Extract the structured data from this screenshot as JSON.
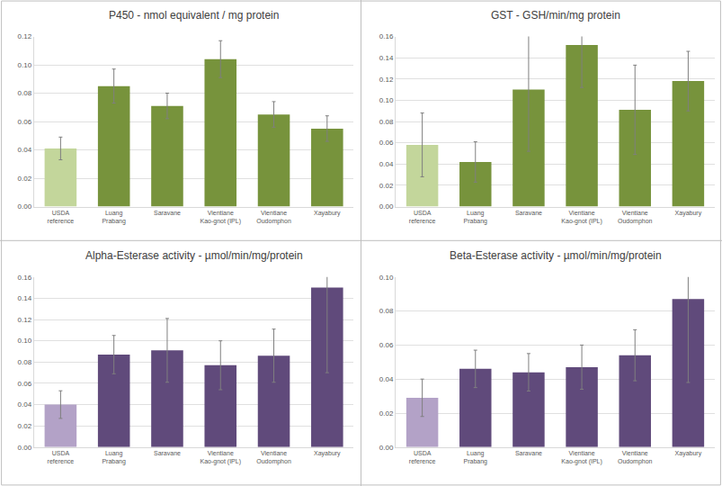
{
  "chart_data": [
    {
      "type": "bar",
      "title": "P450 - nmol equivalent / mg protein",
      "categories": [
        "USDA reference",
        "Luang Prabang",
        "Saravane",
        "Vientiane Kao-gnot (IPL)",
        "Vientiane Oudomphon",
        "Xayabury"
      ],
      "values": [
        0.041,
        0.085,
        0.071,
        0.104,
        0.065,
        0.055
      ],
      "errors": [
        0.008,
        0.012,
        0.009,
        0.013,
        0.009,
        0.009
      ],
      "colors": [
        "#c3d69b",
        "#77933c",
        "#77933c",
        "#77933c",
        "#77933c",
        "#77933c"
      ],
      "ylim": [
        0,
        0.12
      ],
      "yticks": [
        {
          "value": 0,
          "label": "0.00"
        },
        {
          "value": 0.02,
          "label": "0.02"
        },
        {
          "value": 0.04,
          "label": "0.04"
        },
        {
          "value": 0.06,
          "label": "0.06"
        },
        {
          "value": 0.08,
          "label": "0.08"
        },
        {
          "value": 0.1,
          "label": "0.10"
        },
        {
          "value": 0.12,
          "label": "0.12"
        }
      ],
      "grid": true
    },
    {
      "type": "bar",
      "title": "GST - GSH/min/mg protein",
      "categories": [
        "USDA reference",
        "Luang Prabang",
        "Saravane",
        "Vientiane Kao-gnot (IPL)",
        "Vientiane Oudomphon",
        "Xayabury"
      ],
      "values": [
        0.058,
        0.042,
        0.11,
        0.152,
        0.091,
        0.118
      ],
      "errors": [
        0.03,
        0.019,
        0.058,
        0.04,
        0.042,
        0.028
      ],
      "colors": [
        "#c3d69b",
        "#77933c",
        "#77933c",
        "#77933c",
        "#77933c",
        "#77933c"
      ],
      "ylim": [
        0,
        0.16
      ],
      "yticks": [
        {
          "value": 0,
          "label": "0.00"
        },
        {
          "value": 0.02,
          "label": "0.02"
        },
        {
          "value": 0.04,
          "label": "0.04"
        },
        {
          "value": 0.06,
          "label": "0.06"
        },
        {
          "value": 0.08,
          "label": "0.08"
        },
        {
          "value": 0.1,
          "label": "0.10"
        },
        {
          "value": 0.12,
          "label": "0.12"
        },
        {
          "value": 0.14,
          "label": "0.14"
        },
        {
          "value": 0.16,
          "label": "0.16"
        }
      ],
      "grid": true
    },
    {
      "type": "bar",
      "title": "Alpha-Esterase activity - µmol/min/mg/protein",
      "categories": [
        "USDA reference",
        "Luang Prabang",
        "Saravane",
        "Vientiane Kao-gnot (IPL)",
        "Vientiane Oudomphon",
        "Xayabury"
      ],
      "values": [
        0.04,
        0.087,
        0.091,
        0.077,
        0.086,
        0.15
      ],
      "errors": [
        0.013,
        0.018,
        0.03,
        0.023,
        0.025,
        0.08
      ],
      "colors": [
        "#b3a2c7",
        "#604a7b",
        "#604a7b",
        "#604a7b",
        "#604a7b",
        "#604a7b"
      ],
      "ylim": [
        0,
        0.16
      ],
      "yticks": [
        {
          "value": 0,
          "label": "0.00"
        },
        {
          "value": 0.02,
          "label": "0.02"
        },
        {
          "value": 0.04,
          "label": "0.04"
        },
        {
          "value": 0.06,
          "label": "0.06"
        },
        {
          "value": 0.08,
          "label": "0.08"
        },
        {
          "value": 0.1,
          "label": "0.10"
        },
        {
          "value": 0.12,
          "label": "0.12"
        },
        {
          "value": 0.14,
          "label": "0.14"
        },
        {
          "value": 0.16,
          "label": "0.16"
        }
      ],
      "grid": true
    },
    {
      "type": "bar",
      "title": "Beta-Esterase activity - µmol/min/mg/protein",
      "categories": [
        "USDA reference",
        "Luang Prabang",
        "Saravane",
        "Vientiane Kao-gnot (IPL)",
        "Vientiane Oudomphon",
        "Xayabury"
      ],
      "values": [
        0.029,
        0.046,
        0.044,
        0.047,
        0.054,
        0.087
      ],
      "errors": [
        0.011,
        0.011,
        0.011,
        0.013,
        0.015,
        0.049
      ],
      "colors": [
        "#b3a2c7",
        "#604a7b",
        "#604a7b",
        "#604a7b",
        "#604a7b",
        "#604a7b"
      ],
      "ylim": [
        0,
        0.1
      ],
      "yticks": [
        {
          "value": 0,
          "label": "0.00"
        },
        {
          "value": 0.02,
          "label": "0.02"
        },
        {
          "value": 0.04,
          "label": "0.04"
        },
        {
          "value": 0.06,
          "label": "0.06"
        },
        {
          "value": 0.08,
          "label": "0.08"
        },
        {
          "value": 0.1,
          "label": "0.10"
        }
      ],
      "grid": true
    }
  ]
}
